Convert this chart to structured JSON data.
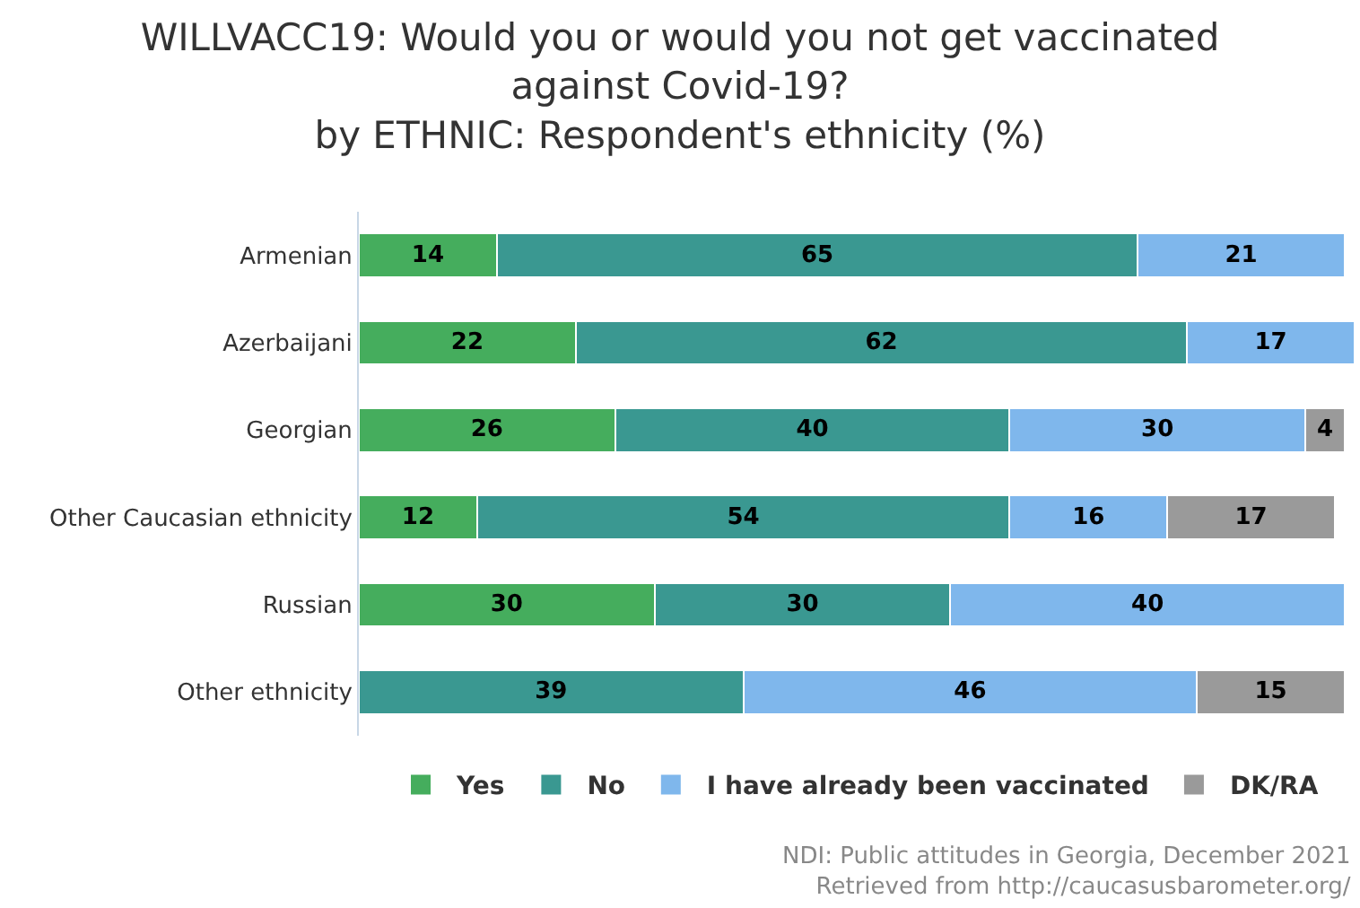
{
  "chart_data": {
    "type": "bar",
    "orientation": "horizontal",
    "stacked": true,
    "title": "WILLVACC19: Would you or would you not get vaccinated\nagainst Covid-19?\nby ETHNIC: Respondent's ethnicity (%)",
    "categories": [
      "Armenian",
      "Azerbaijani",
      "Georgian",
      "Other Caucasian ethnicity",
      "Russian",
      "Other ethnicity"
    ],
    "series": [
      {
        "name": "Yes",
        "color": "#45ad5d",
        "values": [
          14,
          22,
          26,
          12,
          30,
          null
        ]
      },
      {
        "name": "No",
        "color": "#3a9891",
        "values": [
          65,
          62,
          40,
          54,
          30,
          39
        ]
      },
      {
        "name": "I have already been vaccinated",
        "color": "#7fb7ec",
        "values": [
          21,
          17,
          30,
          16,
          40,
          46
        ]
      },
      {
        "name": "DK/RA",
        "color": "#9a9a9a",
        "values": [
          null,
          null,
          4,
          17,
          null,
          15
        ]
      }
    ],
    "data_labels": true,
    "legend": "bottom",
    "grid": false,
    "tick_labels": "y",
    "annotations": [
      "NDI: Public attitudes in Georgia, December 2021",
      "Retrieved from http://caucasusbarometer.org/"
    ]
  }
}
